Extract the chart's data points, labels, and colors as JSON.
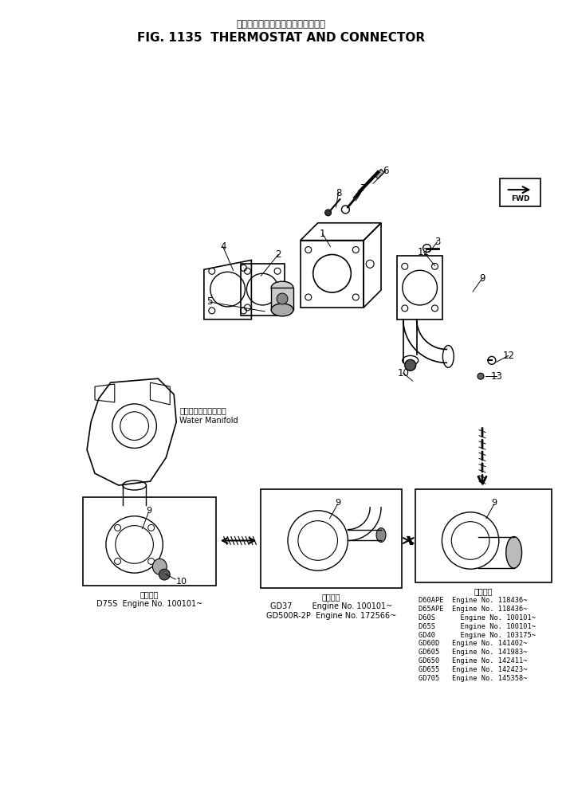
{
  "title_japanese": "サーモスタット　および　コネクタ",
  "title_english": "FIG. 1135  THERMOSTAT AND CONNECTOR",
  "background_color": "#ffffff",
  "part_numbers": [
    "1",
    "2",
    "3",
    "4",
    "5",
    "6",
    "7",
    "8",
    "9",
    "10",
    "11",
    "12",
    "13"
  ],
  "box1_label_jp": "適用号番",
  "box1_label": "D75S  Engine No. 100101~",
  "box2_label_jp": "適用号番",
  "box2_label": "GD37        Engine No. 100101~\nGD500R-2P  Engine No. 172566~",
  "box3_label_jp": "適用号番",
  "box3_lines": [
    "D60APE  Engine No. 118436~",
    "D65APE  Engine No. 118436~",
    "D60S      Engine No. 100101~",
    "D65S      Engine No. 100101~",
    "GD40      Engine No. 103175~",
    "GD60D   Engine No. 141402~",
    "GD605   Engine No. 141983~",
    "GD650   Engine No. 142411~",
    "GD655   Engine No. 142423~",
    "GD705   Engine No. 145358~"
  ],
  "water_manifold_jp": "ウォータマニホールド",
  "water_manifold_en": "Water Manifold"
}
